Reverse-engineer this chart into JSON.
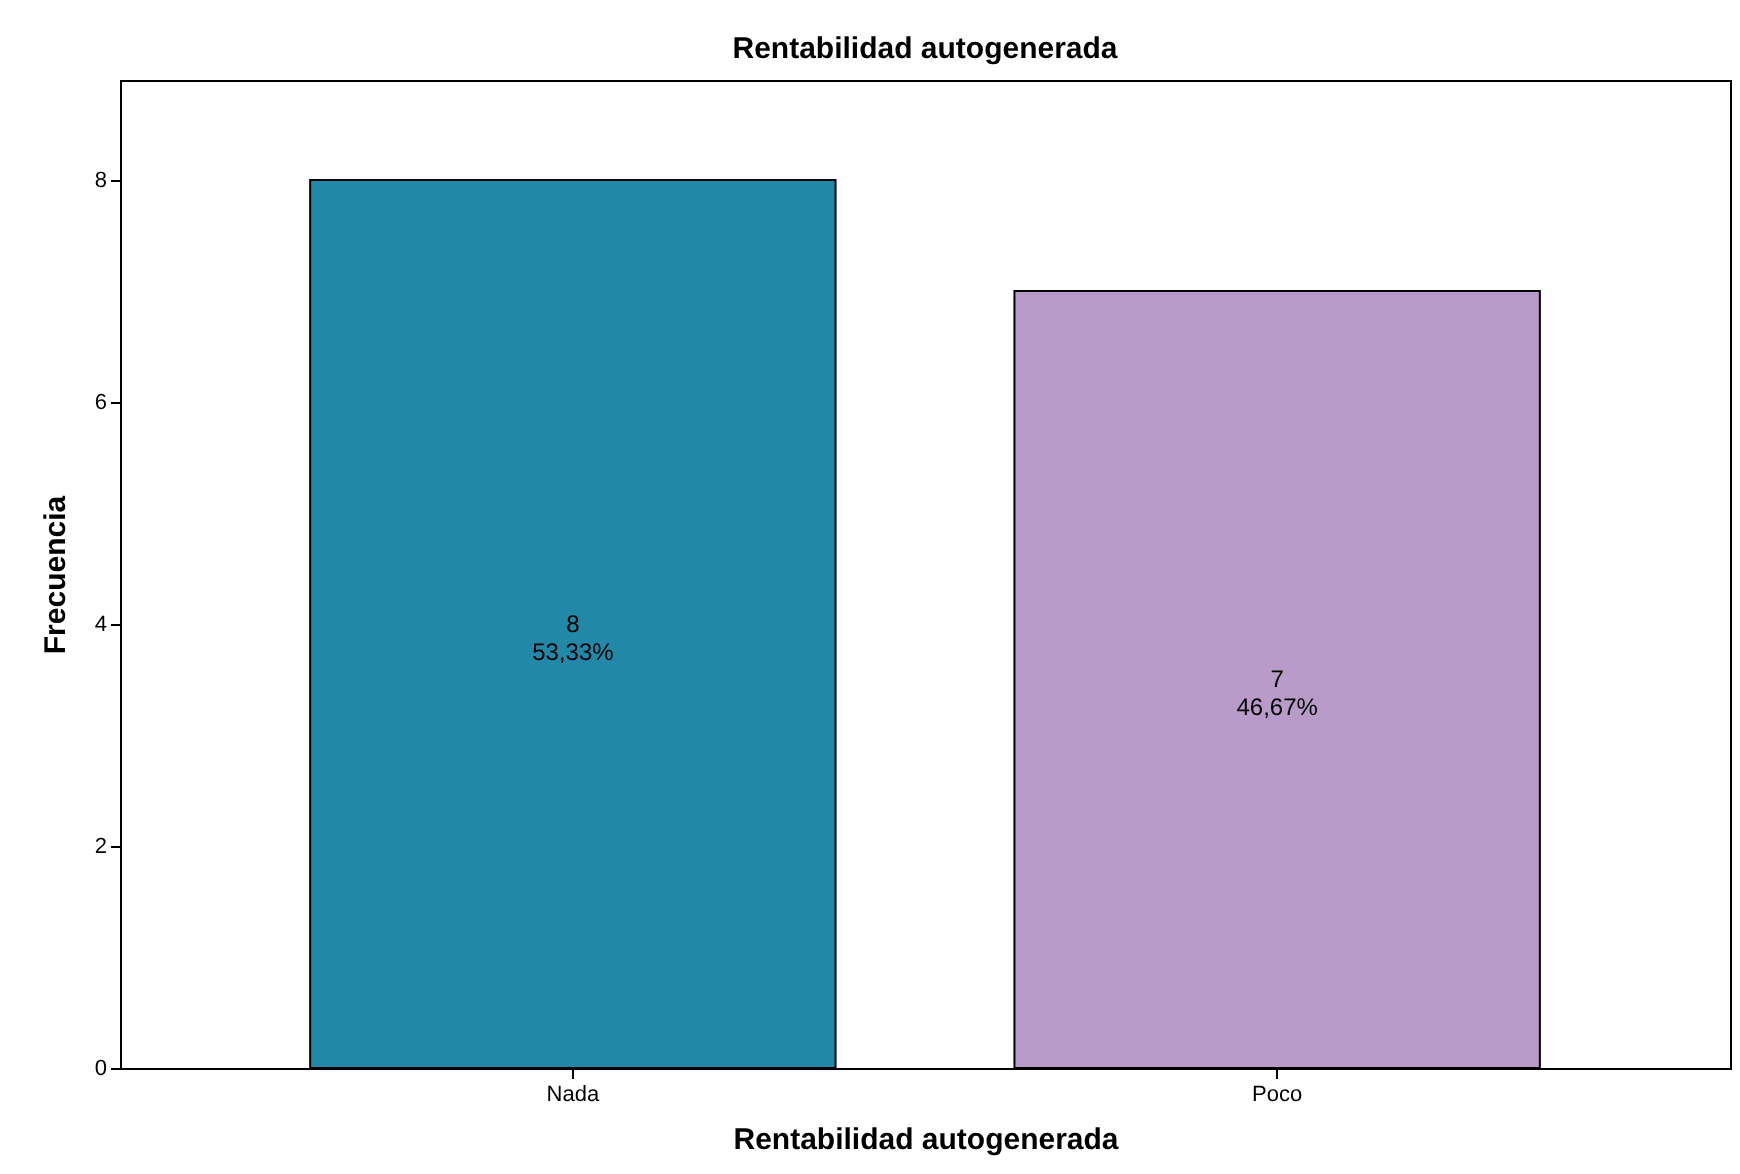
{
  "chart_data": {
    "type": "bar",
    "title": "Rentabilidad autogenerada",
    "xlabel": "Rentabilidad autogenerada",
    "ylabel": "Frecuencia",
    "categories": [
      "Nada",
      "Poco"
    ],
    "values": [
      8,
      7
    ],
    "colors": [
      "#2288a8",
      "#b89bc9"
    ],
    "value_labels": [
      "8\n53,33%",
      "7\n46,67%"
    ],
    "ylim": [
      0,
      8.9
    ],
    "yticks": [
      0,
      2,
      4,
      6,
      8
    ],
    "grid": false,
    "legend": false
  }
}
